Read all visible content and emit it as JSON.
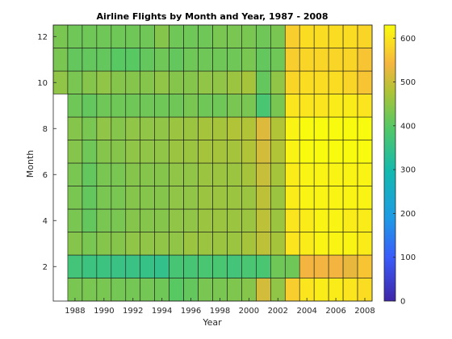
{
  "chart_data": {
    "type": "heatmap",
    "title": "Airline Flights by Month and Year, 1987 - 2008",
    "xlabel": "Year",
    "ylabel": "Month",
    "x": [
      1987,
      1988,
      1989,
      1990,
      1991,
      1992,
      1993,
      1994,
      1995,
      1996,
      1997,
      1998,
      1999,
      2000,
      2001,
      2002,
      2003,
      2004,
      2005,
      2006,
      2007,
      2008
    ],
    "y": [
      1,
      2,
      3,
      4,
      5,
      6,
      7,
      8,
      9,
      10,
      11,
      12
    ],
    "xticks": [
      1988,
      1990,
      1992,
      1994,
      1996,
      1998,
      2000,
      2002,
      2004,
      2006,
      2008
    ],
    "yticks": [
      2,
      4,
      6,
      8,
      10,
      12
    ],
    "colorbar": {
      "min": 0,
      "max": 630,
      "ticks": [
        0,
        100,
        200,
        300,
        400,
        500,
        600
      ],
      "colormap": "parula"
    },
    "grid": true,
    "values": [
      [
        null,
        430,
        430,
        430,
        425,
        425,
        425,
        420,
        400,
        410,
        430,
        430,
        435,
        440,
        510,
        450,
        570,
        600,
        610,
        610,
        600,
        590
      ],
      [
        null,
        370,
        360,
        360,
        355,
        355,
        350,
        345,
        375,
        375,
        380,
        380,
        370,
        380,
        380,
        420,
        420,
        540,
        540,
        540,
        530,
        560
      ],
      [
        null,
        440,
        430,
        440,
        440,
        450,
        450,
        450,
        450,
        460,
        460,
        460,
        460,
        470,
        490,
        470,
        600,
        610,
        620,
        620,
        620,
        610
      ],
      [
        null,
        430,
        410,
        430,
        430,
        440,
        440,
        440,
        450,
        450,
        460,
        460,
        460,
        460,
        490,
        460,
        600,
        610,
        620,
        620,
        610,
        610
      ],
      [
        null,
        430,
        410,
        430,
        430,
        440,
        440,
        440,
        450,
        450,
        460,
        460,
        460,
        460,
        490,
        460,
        610,
        620,
        620,
        620,
        620,
        620
      ],
      [
        null,
        430,
        410,
        430,
        430,
        440,
        440,
        440,
        450,
        450,
        460,
        460,
        460,
        470,
        500,
        470,
        610,
        620,
        620,
        620,
        620,
        620
      ],
      [
        null,
        440,
        420,
        440,
        440,
        450,
        450,
        450,
        460,
        460,
        470,
        470,
        470,
        480,
        510,
        480,
        620,
        630,
        630,
        630,
        630,
        630
      ],
      [
        null,
        440,
        430,
        450,
        440,
        450,
        450,
        450,
        460,
        460,
        470,
        470,
        480,
        480,
        520,
        480,
        620,
        630,
        630,
        630,
        630,
        630
      ],
      [
        null,
        420,
        410,
        420,
        420,
        420,
        420,
        420,
        420,
        430,
        420,
        420,
        430,
        430,
        380,
        430,
        600,
        600,
        600,
        610,
        610,
        600
      ],
      [
        450,
        430,
        440,
        450,
        440,
        440,
        440,
        450,
        440,
        440,
        450,
        450,
        460,
        470,
        410,
        450,
        580,
        590,
        590,
        590,
        580,
        560
      ],
      [
        430,
        410,
        410,
        410,
        400,
        400,
        410,
        420,
        410,
        420,
        420,
        420,
        420,
        430,
        410,
        420,
        570,
        580,
        580,
        580,
        580,
        560
      ],
      [
        430,
        420,
        420,
        420,
        420,
        420,
        420,
        440,
        420,
        420,
        420,
        430,
        430,
        430,
        420,
        430,
        570,
        590,
        590,
        590,
        590,
        580
      ]
    ]
  }
}
